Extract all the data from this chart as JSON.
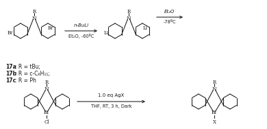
{
  "bg_color": "#ffffff",
  "fig_width": 3.9,
  "fig_height": 1.88,
  "dpi": 100,
  "arrow1_label_top": "n-BuLi",
  "arrow1_label_bot": "Et₂O, -60ºC",
  "arrow2_label_top": "Et₂O",
  "arrow2_label_bot": "-78ºC",
  "arrow3_label_top": "1.0 eq AgX",
  "arrow3_label_bot": "THF, RT, 3 h, Dark",
  "label_17a": "17a",
  "label_17b": "17b",
  "label_17c": "17c",
  "label_17a_rest": ": R = tBu;",
  "label_17b_rest": ": R = c-C₆H₁₁;",
  "label_17c_rest": ": R = Ph",
  "line_color": "#1a1a1a",
  "line_width": 0.75
}
